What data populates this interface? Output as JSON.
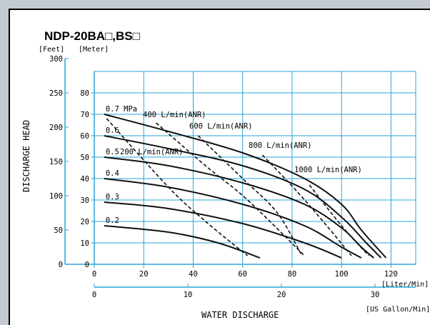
{
  "chart_data": {
    "type": "line",
    "title": "NDP-20BA□,BS□",
    "xlabel": "WATER  DISCHARGE",
    "ylabel": "DISCHARGE  HEAD",
    "y_unit_left": "[Feet]",
    "y_unit_right": "[Meter]",
    "x_unit_primary": "[Liter/Min]",
    "x_unit_secondary": "[US Gallon/Min]",
    "xlim": [
      0,
      130
    ],
    "ylim_meter": [
      0,
      90
    ],
    "ylim_feet": [
      0,
      300
    ],
    "x_ticks": [
      "0",
      "20",
      "40",
      "60",
      "80",
      "100",
      "120"
    ],
    "x_ticks_values": [
      0,
      20,
      40,
      60,
      80,
      100,
      120
    ],
    "x2_ticks": [
      "0",
      "10",
      "20",
      "30"
    ],
    "x2_ticks_values": [
      0,
      10,
      20,
      30
    ],
    "y_meter_ticks": [
      "0",
      "10",
      "20",
      "30",
      "40",
      "50",
      "60",
      "70",
      "80"
    ],
    "y_meter_ticks_values": [
      0,
      10,
      20,
      30,
      40,
      50,
      60,
      70,
      80
    ],
    "y_feet_ticks": [
      "0",
      "50",
      "100",
      "150",
      "200",
      "250",
      "300"
    ],
    "y_feet_ticks_values": [
      0,
      50,
      100,
      150,
      200,
      250,
      300
    ],
    "grid": true,
    "pressure_series": [
      {
        "name": "0.7 MPa",
        "x": [
          4,
          30,
          60,
          85,
          100,
          108,
          118
        ],
        "y": [
          70,
          62,
          52,
          40,
          28,
          16,
          3
        ]
      },
      {
        "name": "0.6",
        "x": [
          4,
          30,
          60,
          85,
          100,
          110,
          116
        ],
        "y": [
          60,
          54,
          46,
          35,
          22,
          10,
          3
        ]
      },
      {
        "name": "0.5",
        "x": [
          4,
          30,
          60,
          85,
          100,
          108,
          113
        ],
        "y": [
          50,
          46,
          38,
          28,
          17,
          8,
          3
        ]
      },
      {
        "name": "0.4",
        "x": [
          4,
          30,
          60,
          85,
          100,
          108
        ],
        "y": [
          40,
          36,
          28,
          18,
          8,
          3
        ]
      },
      {
        "name": "0.3",
        "x": [
          4,
          30,
          60,
          85,
          100
        ],
        "y": [
          29,
          26,
          19,
          10,
          3
        ]
      },
      {
        "name": "0.2",
        "x": [
          4,
          30,
          50,
          67
        ],
        "y": [
          18,
          15,
          10,
          3
        ]
      }
    ],
    "air_consumption_series": [
      {
        "name": "200 L/min(ANR)",
        "x": [
          5,
          30,
          45,
          62
        ],
        "y": [
          68,
          36,
          20,
          4
        ]
      },
      {
        "name": "400 L/min(ANR)",
        "x": [
          25,
          45,
          62,
          85
        ],
        "y": [
          66,
          46,
          30,
          4
        ]
      },
      {
        "name": "600 L/min(ANR)",
        "x": [
          42,
          60,
          74,
          84
        ],
        "y": [
          60,
          40,
          24,
          4
        ]
      },
      {
        "name": "800 L/min(ANR)",
        "x": [
          68,
          82,
          94,
          104
        ],
        "y": [
          51,
          34,
          18,
          4
        ]
      },
      {
        "name": "1000 L/min(ANR)",
        "x": [
          87,
          100,
          111
        ],
        "y": [
          37,
          18,
          4
        ]
      }
    ]
  }
}
